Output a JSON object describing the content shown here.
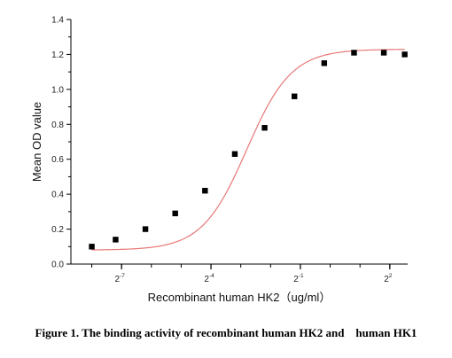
{
  "figure_caption": "Figure 1. The binding activity of recombinant human HK2 and    human HK1",
  "chart_data": {
    "type": "scatter",
    "xlabel": "Recombinant human  HK2（ug/ml）",
    "ylabel": "Mean OD value",
    "x_scale": "log2",
    "x_tick_labels": [
      {
        "base": "2",
        "exp": "-7",
        "x": -7
      },
      {
        "base": "2",
        "exp": "-4",
        "x": -4
      },
      {
        "base": "2",
        "exp": "-1",
        "x": -1
      },
      {
        "base": "2",
        "exp": "2",
        "x": 2
      }
    ],
    "xlim": [
      -8.7,
      2.6
    ],
    "ylim": [
      0,
      1.4
    ],
    "y_ticks": [
      0.0,
      0.2,
      0.4,
      0.6,
      0.8,
      1.0,
      1.2,
      1.4
    ],
    "y_tick_labels": [
      "0.0",
      "0.2",
      "0.4",
      "0.6",
      "0.8",
      "1.0",
      "1.2",
      "1.4"
    ],
    "series": [
      {
        "marker": "square",
        "color": "#000000",
        "x": [
          -8,
          -7.2,
          -6.2,
          -5.2,
          -4.2,
          -3.2,
          -2.2,
          -1.2,
          -0.2,
          0.8,
          1.8,
          2.5
        ],
        "y": [
          0.1,
          0.14,
          0.2,
          0.29,
          0.42,
          0.63,
          0.78,
          0.96,
          1.15,
          1.21,
          1.21,
          1.2
        ]
      }
    ],
    "fit_curve": {
      "type": "sigmoid",
      "color": "#e87878",
      "params": {
        "bottom": 0.08,
        "top": 1.23,
        "mid": -2.8,
        "slope": 0.75
      }
    },
    "grid": false,
    "legend": "none"
  }
}
